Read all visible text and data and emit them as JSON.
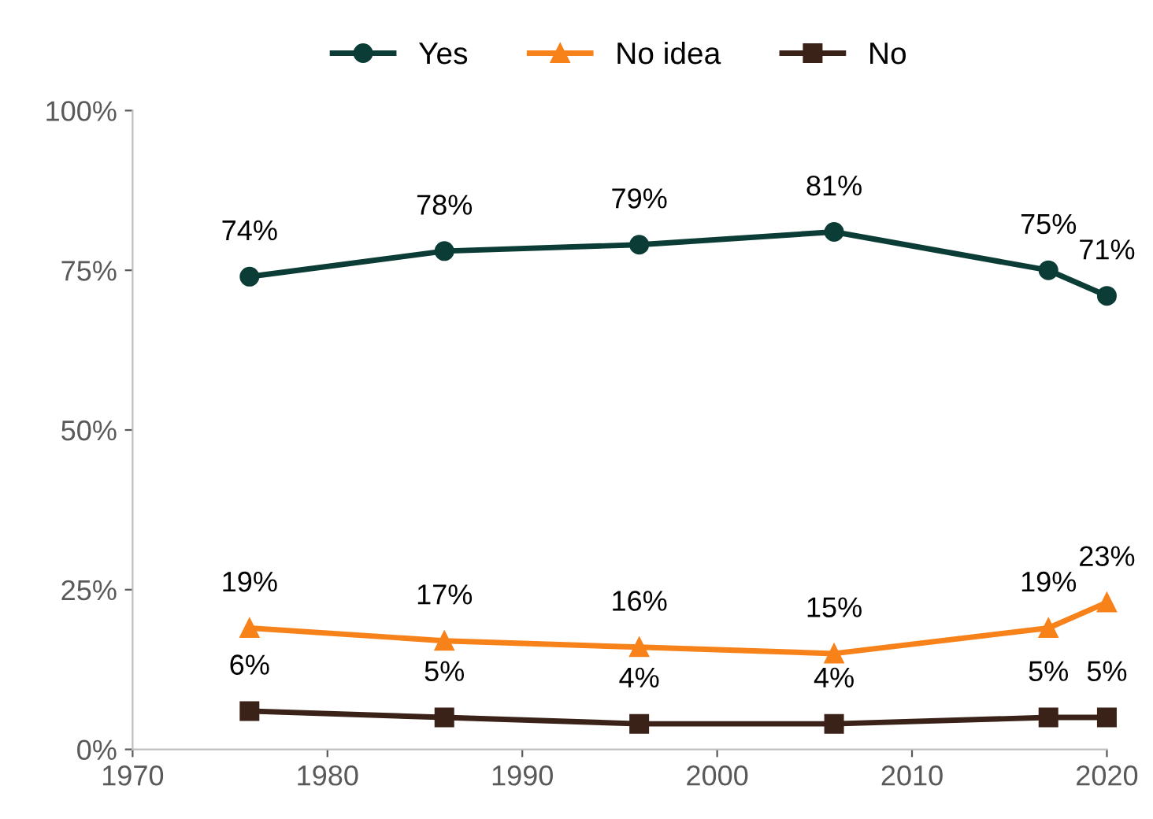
{
  "chart_data": {
    "type": "line",
    "x": [
      1976,
      1986,
      1996,
      2006,
      2017,
      2020
    ],
    "series": [
      {
        "name": "Yes",
        "color": "#0b3d36",
        "marker": "circle",
        "values": [
          74,
          78,
          79,
          81,
          75,
          71
        ],
        "value_labels": [
          "74%",
          "78%",
          "79%",
          "81%",
          "75%",
          "71%"
        ]
      },
      {
        "name": "No idea",
        "color": "#f8821a",
        "marker": "triangle",
        "values": [
          19,
          17,
          16,
          15,
          19,
          23
        ],
        "value_labels": [
          "19%",
          "17%",
          "16%",
          "15%",
          "19%",
          "23%"
        ]
      },
      {
        "name": "No",
        "color": "#3a2218",
        "marker": "square",
        "values": [
          6,
          5,
          4,
          4,
          5,
          5
        ],
        "value_labels": [
          "6%",
          "5%",
          "4%",
          "4%",
          "5%",
          "5%"
        ]
      }
    ],
    "xlim": [
      1970,
      2020
    ],
    "xticks": [
      1970,
      1980,
      1990,
      2000,
      2010,
      2020
    ],
    "ylim": [
      0,
      100
    ],
    "yticks": [
      {
        "value": 0,
        "label": "0%"
      },
      {
        "value": 25,
        "label": "25%"
      },
      {
        "value": 50,
        "label": "50%"
      },
      {
        "value": 75,
        "label": "75%"
      },
      {
        "value": 100,
        "label": "100%"
      }
    ],
    "grid": false,
    "legend": "top",
    "line_style": "solid"
  }
}
